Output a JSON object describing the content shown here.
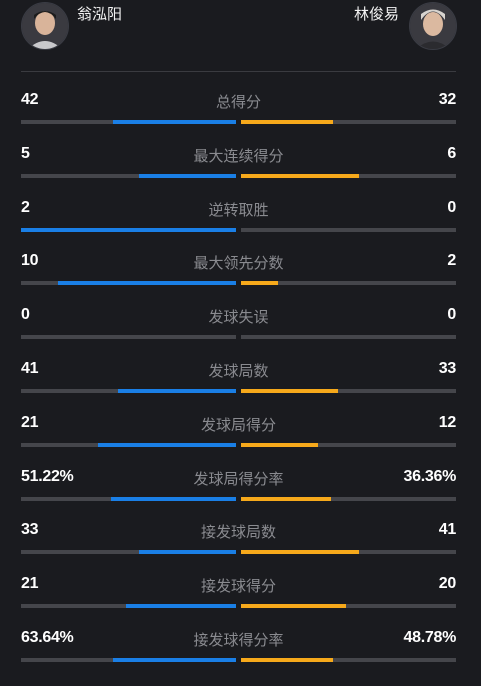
{
  "players": {
    "left": {
      "name": "翁泓阳",
      "avatar": "player-photo"
    },
    "right": {
      "name": "林俊易",
      "avatar": "player-photo"
    }
  },
  "colors": {
    "left_bar": "#1a7fe6",
    "right_bar": "#f6a91b",
    "track": "#45464b",
    "background": "#1a1b1f"
  },
  "stats": [
    {
      "label": "总得分",
      "left": "42",
      "right": "32",
      "left_share": 0.57,
      "right_share": 0.43
    },
    {
      "label": "最大连续得分",
      "left": "5",
      "right": "6",
      "left_share": 0.45,
      "right_share": 0.55
    },
    {
      "label": "逆转取胜",
      "left": "2",
      "right": "0",
      "left_share": 1.0,
      "right_share": 0.0
    },
    {
      "label": "最大领先分数",
      "left": "10",
      "right": "2",
      "left_share": 0.83,
      "right_share": 0.17
    },
    {
      "label": "发球失误",
      "left": "0",
      "right": "0",
      "left_share": 0.0,
      "right_share": 0.0
    },
    {
      "label": "发球局数",
      "left": "41",
      "right": "33",
      "left_share": 0.55,
      "right_share": 0.45
    },
    {
      "label": "发球局得分",
      "left": "21",
      "right": "12",
      "left_share": 0.64,
      "right_share": 0.36
    },
    {
      "label": "发球局得分率",
      "left": "51.22%",
      "right": "36.36%",
      "left_share": 0.58,
      "right_share": 0.42
    },
    {
      "label": "接发球局数",
      "left": "33",
      "right": "41",
      "left_share": 0.45,
      "right_share": 0.55
    },
    {
      "label": "接发球得分",
      "left": "21",
      "right": "20",
      "left_share": 0.51,
      "right_share": 0.49
    },
    {
      "label": "接发球得分率",
      "left": "63.64%",
      "right": "48.78%",
      "left_share": 0.57,
      "right_share": 0.43
    }
  ]
}
